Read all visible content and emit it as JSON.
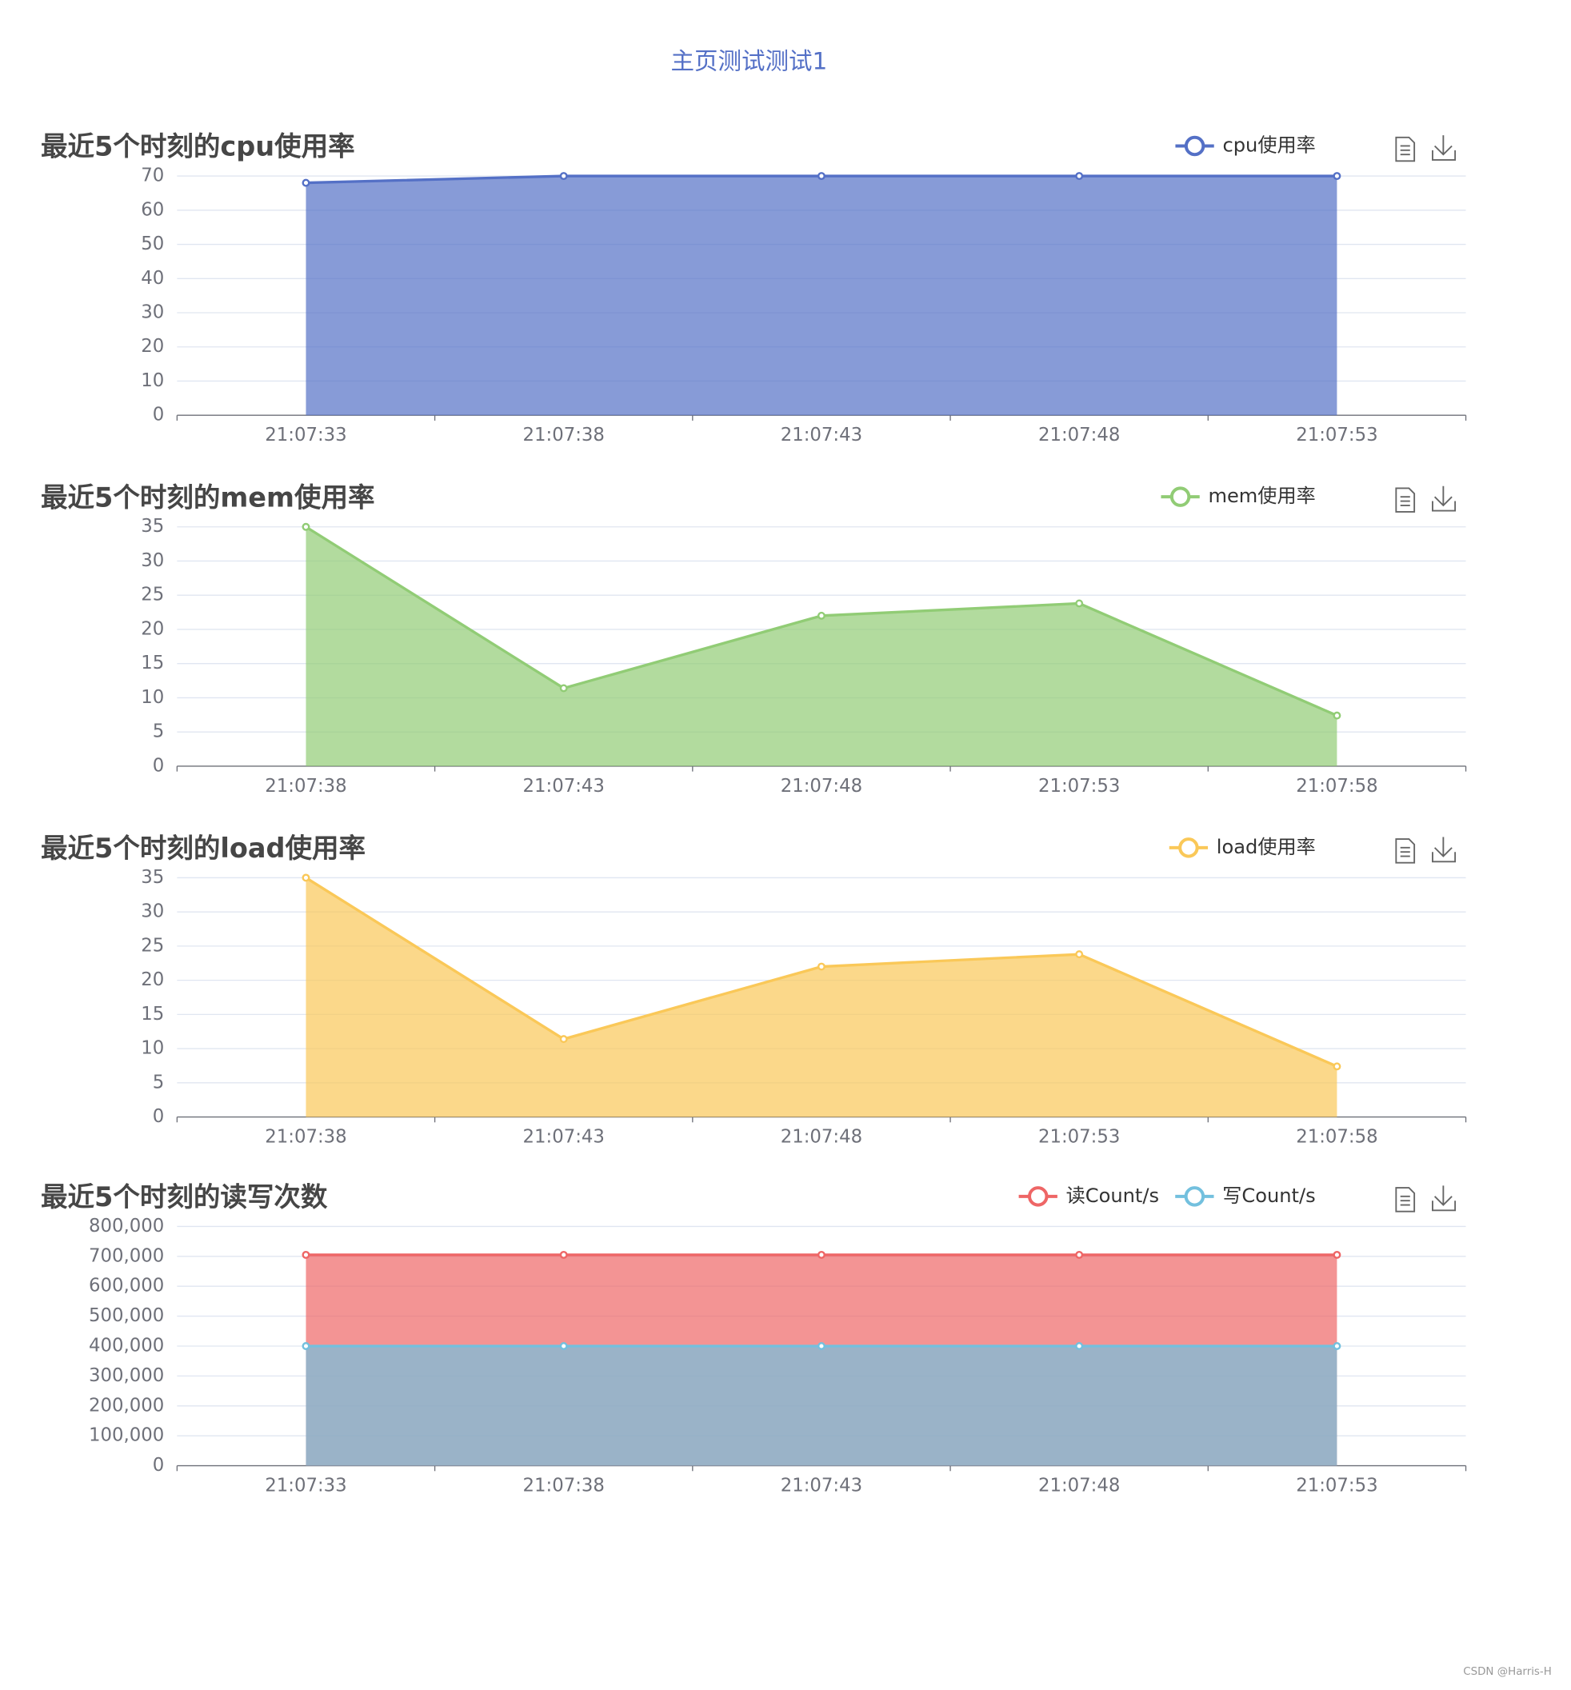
{
  "header": {
    "title": "主页测试测试1"
  },
  "watermark": "CSDN @Harris-H",
  "chart_data": [
    {
      "type": "line",
      "area": true,
      "title": "最近5个时刻的cpu使用率",
      "categories": [
        "21:07:33",
        "21:07:38",
        "21:07:43",
        "21:07:48",
        "21:07:53"
      ],
      "series": [
        {
          "name": "cpu使用率",
          "color": "#5470c6",
          "values": [
            68,
            70,
            70,
            70,
            70
          ]
        }
      ],
      "ylim": [
        0,
        70
      ],
      "yticks": [
        0,
        10,
        20,
        30,
        40,
        50,
        60,
        70
      ],
      "grid": true,
      "legend": "top-right"
    },
    {
      "type": "line",
      "area": true,
      "title": "最近5个时刻的mem使用率",
      "categories": [
        "21:07:38",
        "21:07:43",
        "21:07:48",
        "21:07:53",
        "21:07:58"
      ],
      "series": [
        {
          "name": "mem使用率",
          "color": "#91cc75",
          "values": [
            35,
            11.4,
            22,
            23.8,
            7.4
          ]
        }
      ],
      "ylim": [
        0,
        35
      ],
      "yticks": [
        0,
        5,
        10,
        15,
        20,
        25,
        30,
        35
      ],
      "grid": true,
      "legend": "top-right"
    },
    {
      "type": "line",
      "area": true,
      "title": "最近5个时刻的load使用率",
      "categories": [
        "21:07:38",
        "21:07:43",
        "21:07:48",
        "21:07:53",
        "21:07:58"
      ],
      "series": [
        {
          "name": "load使用率",
          "color": "#fac858",
          "values": [
            35,
            11.4,
            22,
            23.8,
            7.4
          ]
        }
      ],
      "ylim": [
        0,
        35
      ],
      "yticks": [
        0,
        5,
        10,
        15,
        20,
        25,
        30,
        35
      ],
      "grid": true,
      "legend": "top-right"
    },
    {
      "type": "line",
      "area": true,
      "title": "最近5个时刻的读写次数",
      "categories": [
        "21:07:33",
        "21:07:38",
        "21:07:43",
        "21:07:48",
        "21:07:53"
      ],
      "series": [
        {
          "name": "读Count/s",
          "color": "#ee6666",
          "values": [
            705000,
            705000,
            705000,
            705000,
            705000
          ]
        },
        {
          "name": "写Count/s",
          "color": "#73c0de",
          "values": [
            400000,
            400000,
            400000,
            400000,
            400000
          ]
        }
      ],
      "ylim": [
        0,
        800000
      ],
      "yticks": [
        0,
        {
          "value": 100000,
          "label": "100,000"
        },
        {
          "value": 200000,
          "label": "200,000"
        },
        {
          "value": 300000,
          "label": "300,000"
        },
        {
          "value": 400000,
          "label": "400,000"
        },
        {
          "value": 500000,
          "label": "500,000"
        },
        {
          "value": 600000,
          "label": "600,000"
        },
        {
          "value": 700000,
          "label": "700,000"
        },
        {
          "value": 800000,
          "label": "800,000"
        }
      ],
      "grid": true,
      "legend": "top-right"
    }
  ]
}
